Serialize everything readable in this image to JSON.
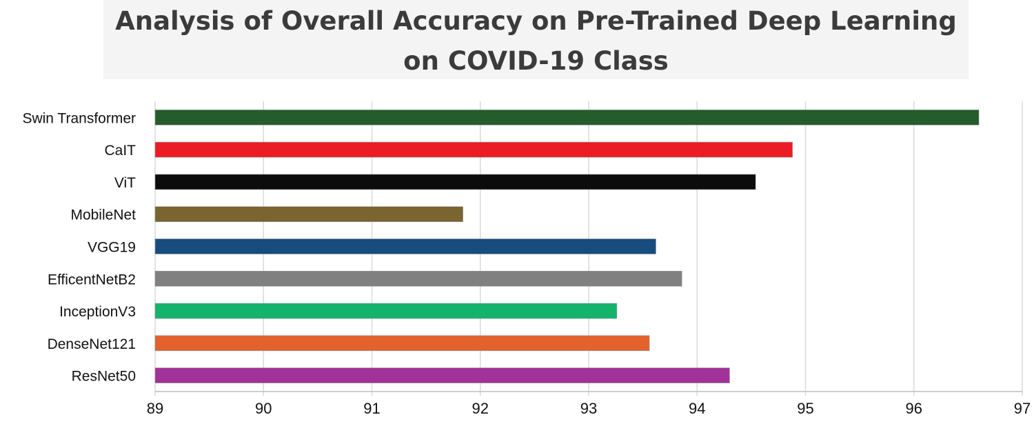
{
  "chart_data": {
    "type": "bar",
    "orientation": "horizontal",
    "title": "Analysis of Overall Accuracy on Pre-Trained Deep Learning on COVID-19 Class",
    "xlabel": "",
    "ylabel": "",
    "categories": [
      "Swin Transformer",
      "CaIT",
      "ViT",
      "MobileNet",
      "VGG19",
      "EfficentNetB2",
      "InceptionV3",
      "DenseNet121",
      "ResNet50"
    ],
    "values": [
      96.6,
      94.88,
      94.54,
      91.84,
      93.62,
      93.86,
      93.26,
      93.56,
      94.3
    ],
    "colors": [
      "#245c2c",
      "#ec1c24",
      "#0c0c0c",
      "#7a6430",
      "#164c7e",
      "#808080",
      "#13b36c",
      "#e2612c",
      "#a0329a"
    ],
    "xlim": [
      89,
      97
    ],
    "xticks": [
      "89",
      "90",
      "91",
      "92",
      "93",
      "94",
      "95",
      "96",
      "97"
    ],
    "grid": "vertical",
    "legend": "none"
  }
}
